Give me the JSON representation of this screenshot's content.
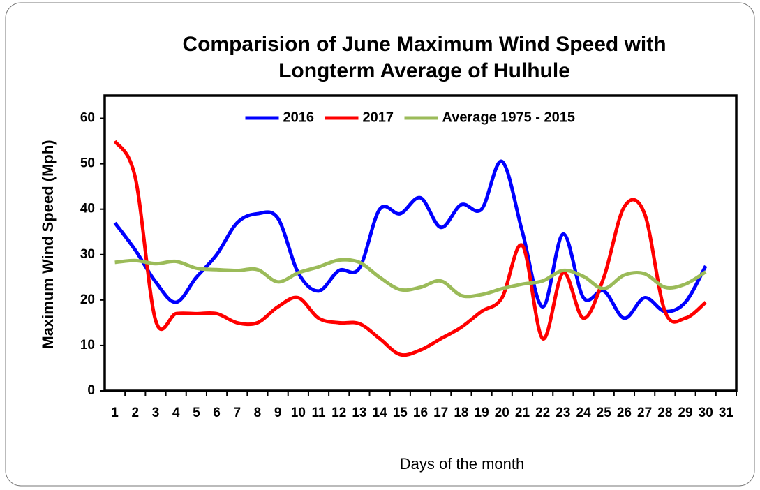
{
  "chart_data": {
    "type": "line",
    "title": [
      "Comparision of June Maximum Wind Speed with",
      "Longterm Average of Hulhule"
    ],
    "x_label": "Days of the month",
    "y_label": "Maximum Wind Speed (Mph)",
    "categories": [
      "1",
      "2",
      "3",
      "4",
      "5",
      "6",
      "7",
      "8",
      "9",
      "10",
      "11",
      "12",
      "13",
      "14",
      "15",
      "16",
      "17",
      "18",
      "19",
      "20",
      "21",
      "22",
      "23",
      "24",
      "25",
      "26",
      "27",
      "28",
      "29",
      "30",
      "31"
    ],
    "series": [
      {
        "name": "2016",
        "color": "#0000ff",
        "values": [
          37,
          31,
          24,
          19.5,
          25,
          30,
          37,
          39,
          38,
          26,
          22,
          26.5,
          27,
          40,
          39,
          42.5,
          36,
          41,
          40,
          50.5,
          35,
          18.5,
          34.5,
          20.5,
          22,
          16,
          20.5,
          17.5,
          19.5,
          27.5,
          null
        ]
      },
      {
        "name": "2017",
        "color": "#ff0000",
        "values": [
          55,
          47,
          15.5,
          17,
          17,
          17,
          15,
          15,
          18.5,
          20.5,
          16,
          15,
          14.8,
          11.5,
          8,
          9,
          11.5,
          14,
          17.5,
          20.5,
          32,
          11.5,
          26,
          16,
          25,
          40.5,
          39,
          17.5,
          16,
          19.5,
          null
        ]
      },
      {
        "name": "Average 1975 - 2015",
        "color": "#9bbb59",
        "values": [
          28.3,
          28.7,
          28,
          28.5,
          27,
          26.7,
          26.5,
          26.7,
          24,
          26,
          27.3,
          28.8,
          28.3,
          25,
          22.3,
          22.8,
          24.2,
          21,
          21.2,
          22.5,
          23.5,
          24.2,
          26.5,
          25.2,
          22.5,
          25.5,
          25.8,
          22.8,
          23.5,
          26.2,
          null
        ]
      }
    ],
    "ylim": [
      0,
      65
    ],
    "yticks": [
      0,
      10,
      20,
      30,
      40,
      50,
      60
    ],
    "legend": "top",
    "smooth": true
  }
}
